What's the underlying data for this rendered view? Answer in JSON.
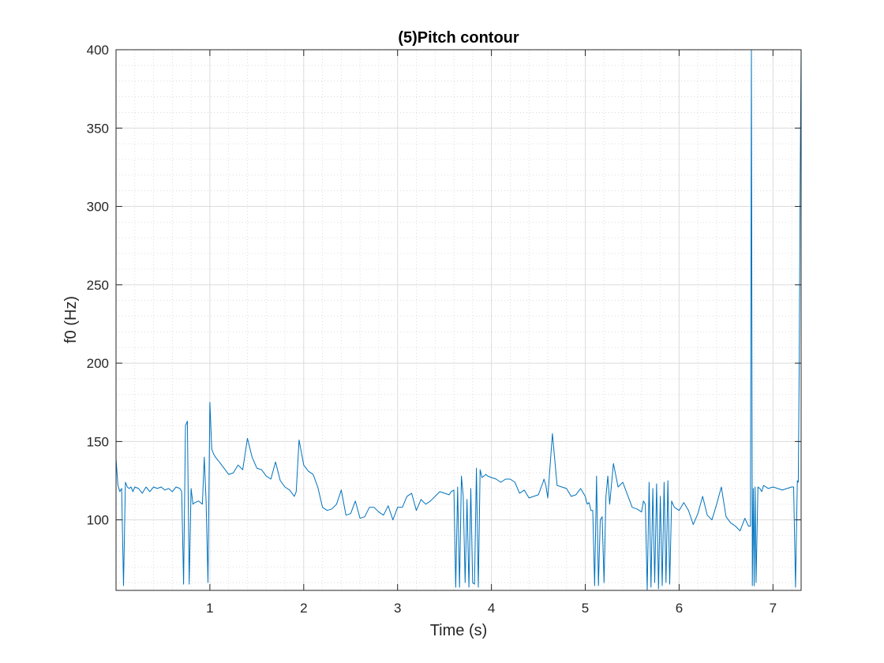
{
  "chart_data": {
    "type": "line",
    "title": "(5)Pitch contour",
    "xlabel": "Time (s)",
    "ylabel": "f0 (Hz)",
    "xlim": [
      0.0,
      7.3
    ],
    "ylim": [
      55,
      400
    ],
    "xticks": [
      1,
      2,
      3,
      4,
      5,
      6,
      7
    ],
    "yticks": [
      100,
      150,
      200,
      250,
      300,
      350,
      400
    ],
    "xtick_labels": [
      "1",
      "2",
      "3",
      "4",
      "5",
      "6",
      "7"
    ],
    "ytick_labels": [
      "100",
      "150",
      "200",
      "250",
      "300",
      "350",
      "400"
    ],
    "grid": true,
    "minor_grid": true,
    "line_color": "#0072BD",
    "series": [
      {
        "x": [
          0.0,
          0.02,
          0.04,
          0.06,
          0.08,
          0.1,
          0.12,
          0.14,
          0.16,
          0.18,
          0.2,
          0.24,
          0.28,
          0.32,
          0.36,
          0.4,
          0.44,
          0.48,
          0.52,
          0.56,
          0.6,
          0.64,
          0.68,
          0.7,
          0.72,
          0.74,
          0.76,
          0.78,
          0.8,
          0.82,
          0.84,
          0.88,
          0.92,
          0.94,
          0.96,
          0.98,
          1.0,
          1.02,
          1.04,
          1.06,
          1.1,
          1.15,
          1.2,
          1.25,
          1.3,
          1.35,
          1.4,
          1.45,
          1.5,
          1.55,
          1.6,
          1.65,
          1.7,
          1.75,
          1.8,
          1.85,
          1.9,
          1.92,
          1.95,
          2.0,
          2.05,
          2.1,
          2.15,
          2.2,
          2.25,
          2.3,
          2.35,
          2.4,
          2.45,
          2.5,
          2.55,
          2.6,
          2.65,
          2.7,
          2.75,
          2.8,
          2.85,
          2.9,
          2.95,
          3.0,
          3.05,
          3.1,
          3.15,
          3.2,
          3.25,
          3.3,
          3.35,
          3.4,
          3.45,
          3.5,
          3.55,
          3.57,
          3.6,
          3.62,
          3.64,
          3.66,
          3.68,
          3.7,
          3.72,
          3.74,
          3.76,
          3.78,
          3.8,
          3.82,
          3.84,
          3.86,
          3.88,
          3.9,
          3.92,
          3.94,
          3.96,
          4.0,
          4.05,
          4.1,
          4.15,
          4.2,
          4.25,
          4.3,
          4.35,
          4.4,
          4.45,
          4.5,
          4.55,
          4.56,
          4.58,
          4.6,
          4.65,
          4.7,
          4.75,
          4.8,
          4.85,
          4.9,
          4.95,
          5.0,
          5.02,
          5.04,
          5.06,
          5.08,
          5.1,
          5.12,
          5.14,
          5.16,
          5.18,
          5.2,
          5.22,
          5.24,
          5.26,
          5.3,
          5.35,
          5.4,
          5.45,
          5.5,
          5.55,
          5.6,
          5.62,
          5.64,
          5.66,
          5.68,
          5.7,
          5.72,
          5.74,
          5.76,
          5.78,
          5.8,
          5.82,
          5.84,
          5.86,
          5.88,
          5.9,
          5.92,
          5.95,
          6.0,
          6.05,
          6.1,
          6.15,
          6.2,
          6.25,
          6.3,
          6.35,
          6.4,
          6.45,
          6.5,
          6.55,
          6.6,
          6.65,
          6.7,
          6.74,
          6.76,
          6.77,
          6.78,
          6.79,
          6.8,
          6.81,
          6.82,
          6.84,
          6.86,
          6.88,
          6.9,
          6.95,
          7.0,
          7.05,
          7.1,
          7.15,
          7.2,
          7.22,
          7.24,
          7.26,
          7.27,
          7.28,
          7.29,
          7.3
        ],
        "y": [
          139,
          122,
          118,
          120,
          58,
          124,
          121,
          120,
          121,
          118,
          121,
          120,
          117,
          121,
          118,
          121,
          120,
          121,
          119,
          120,
          118,
          121,
          120,
          118,
          59,
          160,
          163,
          59,
          120,
          110,
          111,
          112,
          110,
          140,
          112,
          60,
          175,
          145,
          142,
          140,
          137,
          133,
          129,
          130,
          135,
          132,
          152,
          140,
          133,
          132,
          128,
          126,
          137,
          125,
          121,
          119,
          115,
          118,
          151,
          135,
          131,
          129,
          121,
          108,
          106,
          107,
          110,
          119,
          103,
          104,
          112,
          101,
          102,
          108,
          108,
          105,
          103,
          109,
          100,
          108,
          108,
          115,
          117,
          106,
          113,
          110,
          112,
          115,
          118,
          117,
          116,
          118,
          119,
          57,
          121,
          57,
          128,
          115,
          60,
          113,
          57,
          120,
          60,
          59,
          133,
          57,
          132,
          127,
          128,
          129,
          128,
          127,
          126,
          124,
          126,
          126,
          124,
          117,
          119,
          114,
          115,
          116,
          124,
          126,
          122,
          114,
          155,
          122,
          121,
          120,
          115,
          116,
          120,
          115,
          110,
          111,
          106,
          106,
          58,
          128,
          58,
          100,
          102,
          60,
          115,
          128,
          110,
          136,
          121,
          124,
          116,
          108,
          107,
          105,
          112,
          110,
          55,
          124,
          57,
          120,
          60,
          123,
          56,
          115,
          58,
          124,
          60,
          125,
          59,
          112,
          108,
          106,
          111,
          106,
          97,
          104,
          115,
          103,
          100,
          110,
          121,
          102,
          98,
          96,
          93,
          101,
          96,
          96,
          400,
          58,
          120,
          58,
          121,
          60,
          121,
          120,
          118,
          122,
          120,
          121,
          120,
          119,
          120,
          121,
          121,
          57,
          125,
          124,
          200,
          320,
          400
        ]
      }
    ]
  }
}
